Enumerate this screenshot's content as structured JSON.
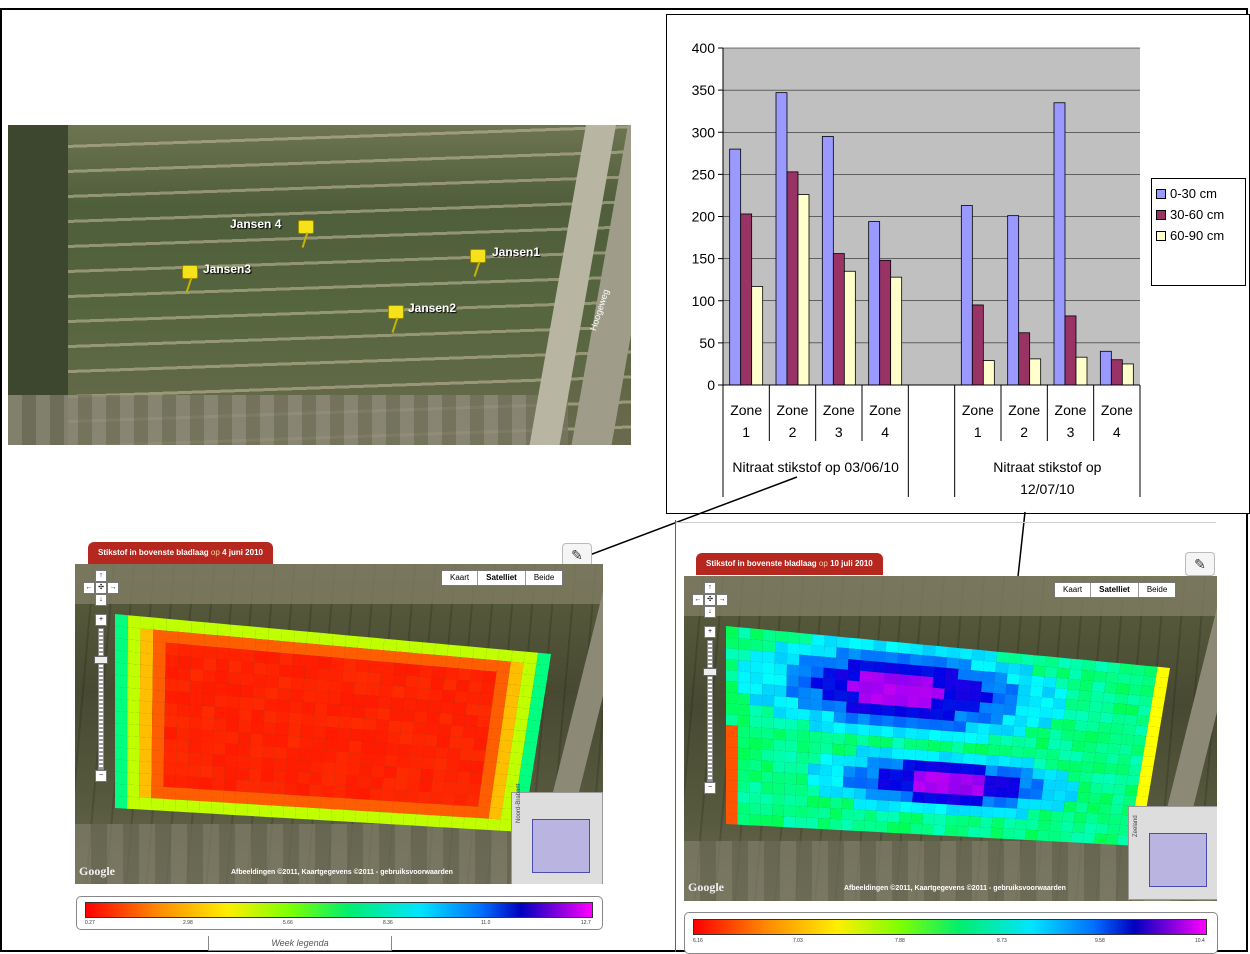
{
  "aerial": {
    "pins": [
      {
        "label": "Jansen 4"
      },
      {
        "label": "Jansen1"
      },
      {
        "label": "Jansen3"
      },
      {
        "label": "Jansen2"
      }
    ],
    "road_label": "Hoogeweg"
  },
  "chart_data": {
    "type": "bar",
    "categories": [
      "Zone 1",
      "Zone 2",
      "Zone 3",
      "Zone 4",
      "Zone 1",
      "Zone 2",
      "Zone 3",
      "Zone 4"
    ],
    "group_labels": [
      "Nitraat stikstof op  03/06/10",
      "Nitraat stikstof op 12/07/10"
    ],
    "series": [
      {
        "name": "0-30 cm",
        "color": "#9999ff",
        "values": [
          280,
          347,
          295,
          194,
          213,
          201,
          335,
          40
        ]
      },
      {
        "name": "30-60 cm",
        "color": "#993366",
        "values": [
          203,
          253,
          156,
          148,
          95,
          62,
          82,
          30
        ]
      },
      {
        "name": "60-90 cm",
        "color": "#ffffcc",
        "values": [
          117,
          226,
          135,
          128,
          29,
          31,
          33,
          25
        ]
      }
    ],
    "ylim": [
      0,
      400
    ],
    "yticks": [
      0,
      50,
      100,
      150,
      200,
      250,
      300,
      350,
      400
    ],
    "grid": true,
    "plot_background": "#c0c0c0",
    "legend_position": "right"
  },
  "panel_left": {
    "title_prefix": "Stikstof in bovenste bladlaag",
    "title_mid": "op",
    "title_date": "4 juni 2010",
    "btn_map": "Kaart",
    "btn_sat": "Satelliet",
    "btn_both": "Beide",
    "copyright": "Afbeeldingen ©2011, Kaartgegevens ©2011 - gebruiksvoorwaarden",
    "google": "Google",
    "scale_ticks": [
      "0.27",
      "2.98",
      "5.66",
      "8.36",
      "11.0",
      "12.7"
    ],
    "scale_title": "Week legenda"
  },
  "panel_right": {
    "title_prefix": "Stikstof in bovenste bladlaag",
    "title_mid": "op",
    "title_date": "10 juli 2010",
    "btn_map": "Kaart",
    "btn_sat": "Satelliet",
    "btn_both": "Beide",
    "copyright": "Afbeeldingen ©2011, Kaartgegevens ©2011 - gebruiksvoorwaarden",
    "google": "Google",
    "scale_ticks": [
      "6.16",
      "7.03",
      "7.88",
      "8.73",
      "9.58",
      "10.4"
    ],
    "overview_text": "Zeeland"
  }
}
